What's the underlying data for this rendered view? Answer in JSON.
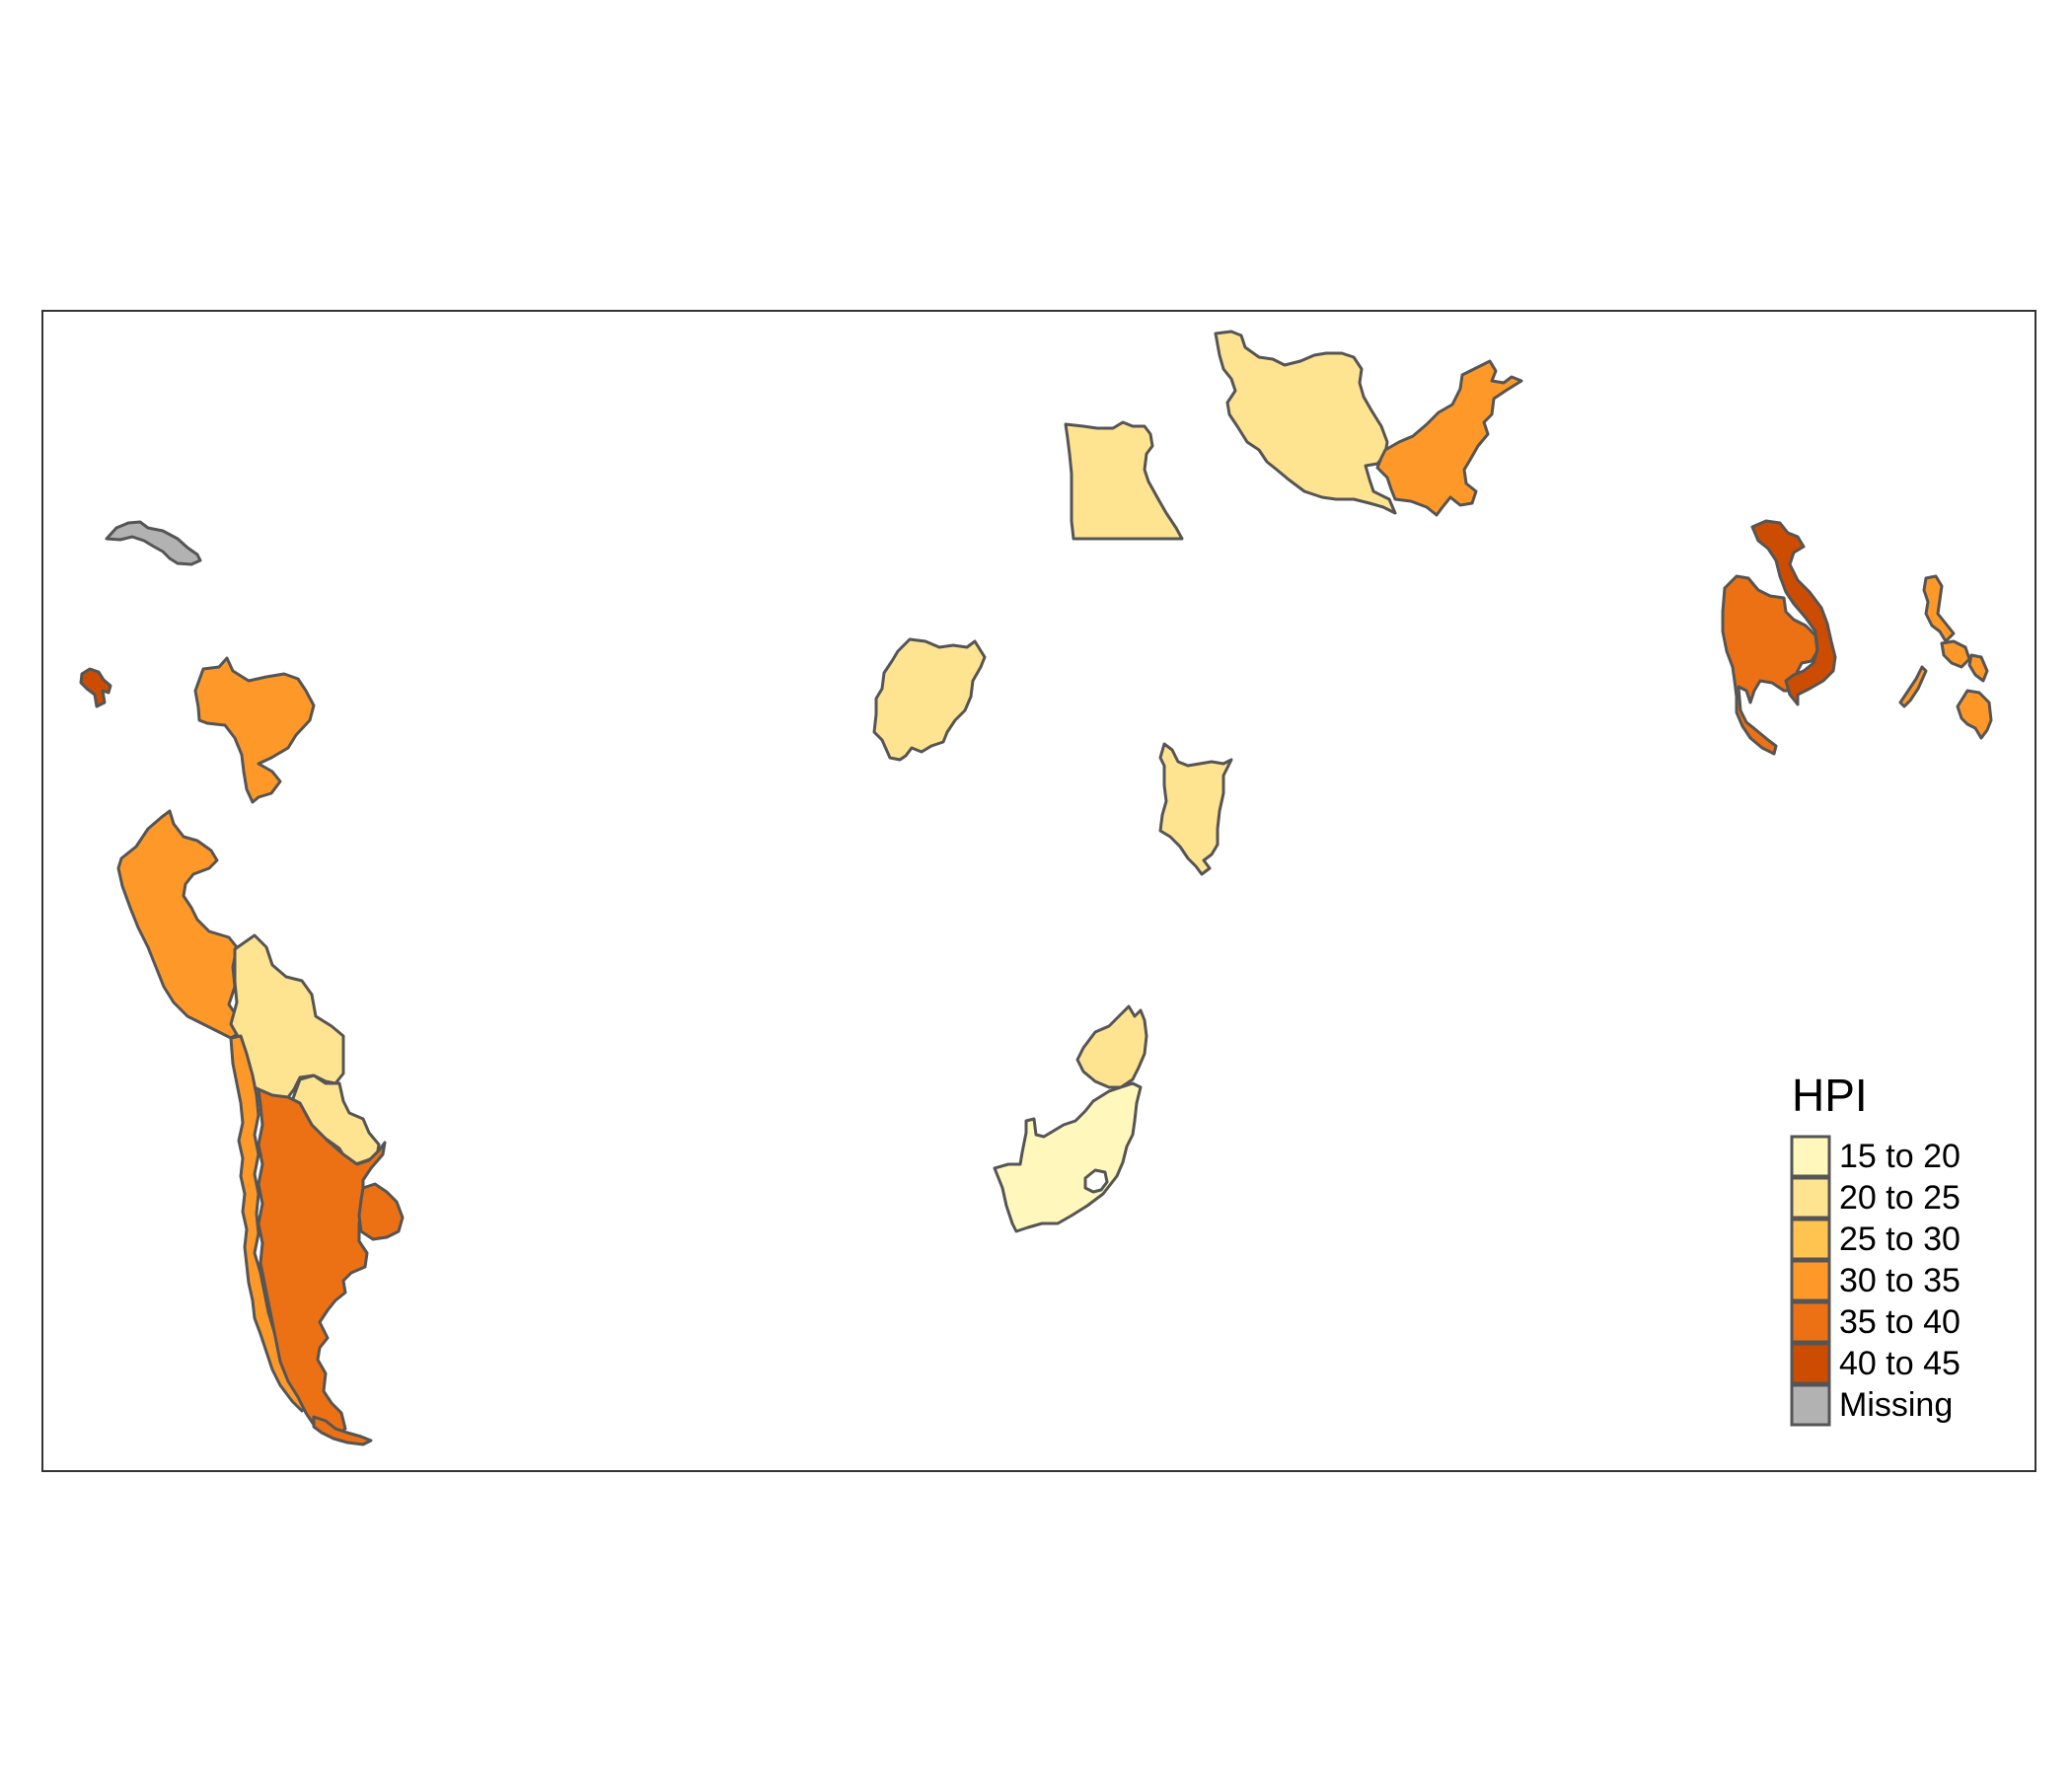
{
  "map": {
    "legend": {
      "title": "HPI",
      "classes": [
        {
          "label": "15 to 20",
          "color": "#FFF7BC"
        },
        {
          "label": "20 to 25",
          "color": "#FEE391"
        },
        {
          "label": "25 to 30",
          "color": "#FEC44F"
        },
        {
          "label": "30 to 35",
          "color": "#FE9929"
        },
        {
          "label": "35 to 40",
          "color": "#EC7014"
        },
        {
          "label": "40 to 45",
          "color": "#CC4C02"
        },
        {
          "label": "Missing",
          "color": "#B2B2B2"
        }
      ]
    },
    "countries": [
      {
        "name": "Cuba",
        "hpi_class": "Missing"
      },
      {
        "name": "Haiti",
        "hpi_class": "40 to 45"
      },
      {
        "name": "Venezuela",
        "hpi_class": "30 to 35"
      },
      {
        "name": "Peru",
        "hpi_class": "30 to 35"
      },
      {
        "name": "Bolivia",
        "hpi_class": "20 to 25"
      },
      {
        "name": "Paraguay",
        "hpi_class": "20 to 25"
      },
      {
        "name": "Chile",
        "hpi_class": "30 to 35"
      },
      {
        "name": "Argentina",
        "hpi_class": "35 to 40"
      },
      {
        "name": "Uruguay",
        "hpi_class": "35 to 40"
      },
      {
        "name": "Egypt",
        "hpi_class": "20 to 25"
      },
      {
        "name": "Iran",
        "hpi_class": "20 to 25"
      },
      {
        "name": "Pakistan",
        "hpi_class": "30 to 35"
      },
      {
        "name": "Nigeria",
        "hpi_class": "20 to 25"
      },
      {
        "name": "Kenya",
        "hpi_class": "20 to 25"
      },
      {
        "name": "Zimbabwe",
        "hpi_class": "20 to 25"
      },
      {
        "name": "South Africa",
        "hpi_class": "15 to 20"
      },
      {
        "name": "Thailand",
        "hpi_class": "35 to 40"
      },
      {
        "name": "Vietnam",
        "hpi_class": "40 to 45"
      },
      {
        "name": "Philippines",
        "hpi_class": "30 to 35"
      }
    ]
  }
}
